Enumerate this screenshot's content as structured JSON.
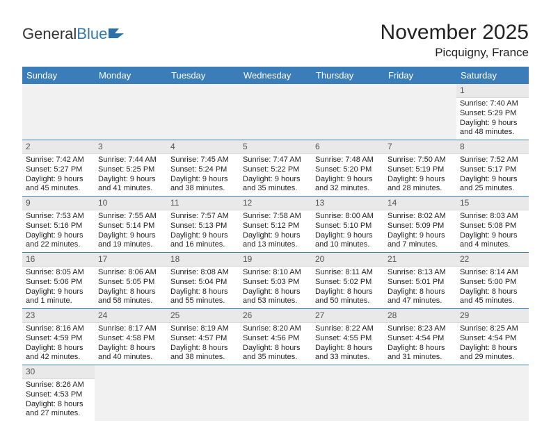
{
  "logo": {
    "general": "General",
    "blue": "Blue"
  },
  "title": "November 2025",
  "location": "Picquigny, France",
  "headerColor": "#3a7db8",
  "daysOfWeek": [
    "Sunday",
    "Monday",
    "Tuesday",
    "Wednesday",
    "Thursday",
    "Friday",
    "Saturday"
  ],
  "weeks": [
    [
      {
        "blank": true
      },
      {
        "blank": true
      },
      {
        "blank": true
      },
      {
        "blank": true
      },
      {
        "blank": true
      },
      {
        "blank": true
      },
      {
        "n": "1",
        "sr": "Sunrise: 7:40 AM",
        "ss": "Sunset: 5:29 PM",
        "dl": "Daylight: 9 hours and 48 minutes."
      }
    ],
    [
      {
        "n": "2",
        "sr": "Sunrise: 7:42 AM",
        "ss": "Sunset: 5:27 PM",
        "dl": "Daylight: 9 hours and 45 minutes."
      },
      {
        "n": "3",
        "sr": "Sunrise: 7:44 AM",
        "ss": "Sunset: 5:25 PM",
        "dl": "Daylight: 9 hours and 41 minutes."
      },
      {
        "n": "4",
        "sr": "Sunrise: 7:45 AM",
        "ss": "Sunset: 5:24 PM",
        "dl": "Daylight: 9 hours and 38 minutes."
      },
      {
        "n": "5",
        "sr": "Sunrise: 7:47 AM",
        "ss": "Sunset: 5:22 PM",
        "dl": "Daylight: 9 hours and 35 minutes."
      },
      {
        "n": "6",
        "sr": "Sunrise: 7:48 AM",
        "ss": "Sunset: 5:20 PM",
        "dl": "Daylight: 9 hours and 32 minutes."
      },
      {
        "n": "7",
        "sr": "Sunrise: 7:50 AM",
        "ss": "Sunset: 5:19 PM",
        "dl": "Daylight: 9 hours and 28 minutes."
      },
      {
        "n": "8",
        "sr": "Sunrise: 7:52 AM",
        "ss": "Sunset: 5:17 PM",
        "dl": "Daylight: 9 hours and 25 minutes."
      }
    ],
    [
      {
        "n": "9",
        "sr": "Sunrise: 7:53 AM",
        "ss": "Sunset: 5:16 PM",
        "dl": "Daylight: 9 hours and 22 minutes."
      },
      {
        "n": "10",
        "sr": "Sunrise: 7:55 AM",
        "ss": "Sunset: 5:14 PM",
        "dl": "Daylight: 9 hours and 19 minutes."
      },
      {
        "n": "11",
        "sr": "Sunrise: 7:57 AM",
        "ss": "Sunset: 5:13 PM",
        "dl": "Daylight: 9 hours and 16 minutes."
      },
      {
        "n": "12",
        "sr": "Sunrise: 7:58 AM",
        "ss": "Sunset: 5:12 PM",
        "dl": "Daylight: 9 hours and 13 minutes."
      },
      {
        "n": "13",
        "sr": "Sunrise: 8:00 AM",
        "ss": "Sunset: 5:10 PM",
        "dl": "Daylight: 9 hours and 10 minutes."
      },
      {
        "n": "14",
        "sr": "Sunrise: 8:02 AM",
        "ss": "Sunset: 5:09 PM",
        "dl": "Daylight: 9 hours and 7 minutes."
      },
      {
        "n": "15",
        "sr": "Sunrise: 8:03 AM",
        "ss": "Sunset: 5:08 PM",
        "dl": "Daylight: 9 hours and 4 minutes."
      }
    ],
    [
      {
        "n": "16",
        "sr": "Sunrise: 8:05 AM",
        "ss": "Sunset: 5:06 PM",
        "dl": "Daylight: 9 hours and 1 minute."
      },
      {
        "n": "17",
        "sr": "Sunrise: 8:06 AM",
        "ss": "Sunset: 5:05 PM",
        "dl": "Daylight: 8 hours and 58 minutes."
      },
      {
        "n": "18",
        "sr": "Sunrise: 8:08 AM",
        "ss": "Sunset: 5:04 PM",
        "dl": "Daylight: 8 hours and 55 minutes."
      },
      {
        "n": "19",
        "sr": "Sunrise: 8:10 AM",
        "ss": "Sunset: 5:03 PM",
        "dl": "Daylight: 8 hours and 53 minutes."
      },
      {
        "n": "20",
        "sr": "Sunrise: 8:11 AM",
        "ss": "Sunset: 5:02 PM",
        "dl": "Daylight: 8 hours and 50 minutes."
      },
      {
        "n": "21",
        "sr": "Sunrise: 8:13 AM",
        "ss": "Sunset: 5:01 PM",
        "dl": "Daylight: 8 hours and 47 minutes."
      },
      {
        "n": "22",
        "sr": "Sunrise: 8:14 AM",
        "ss": "Sunset: 5:00 PM",
        "dl": "Daylight: 8 hours and 45 minutes."
      }
    ],
    [
      {
        "n": "23",
        "sr": "Sunrise: 8:16 AM",
        "ss": "Sunset: 4:59 PM",
        "dl": "Daylight: 8 hours and 42 minutes."
      },
      {
        "n": "24",
        "sr": "Sunrise: 8:17 AM",
        "ss": "Sunset: 4:58 PM",
        "dl": "Daylight: 8 hours and 40 minutes."
      },
      {
        "n": "25",
        "sr": "Sunrise: 8:19 AM",
        "ss": "Sunset: 4:57 PM",
        "dl": "Daylight: 8 hours and 38 minutes."
      },
      {
        "n": "26",
        "sr": "Sunrise: 8:20 AM",
        "ss": "Sunset: 4:56 PM",
        "dl": "Daylight: 8 hours and 35 minutes."
      },
      {
        "n": "27",
        "sr": "Sunrise: 8:22 AM",
        "ss": "Sunset: 4:55 PM",
        "dl": "Daylight: 8 hours and 33 minutes."
      },
      {
        "n": "28",
        "sr": "Sunrise: 8:23 AM",
        "ss": "Sunset: 4:54 PM",
        "dl": "Daylight: 8 hours and 31 minutes."
      },
      {
        "n": "29",
        "sr": "Sunrise: 8:25 AM",
        "ss": "Sunset: 4:54 PM",
        "dl": "Daylight: 8 hours and 29 minutes."
      }
    ],
    [
      {
        "n": "30",
        "sr": "Sunrise: 8:26 AM",
        "ss": "Sunset: 4:53 PM",
        "dl": "Daylight: 8 hours and 27 minutes."
      },
      {
        "blank": true
      },
      {
        "blank": true
      },
      {
        "blank": true
      },
      {
        "blank": true
      },
      {
        "blank": true
      },
      {
        "blank": true
      }
    ]
  ]
}
